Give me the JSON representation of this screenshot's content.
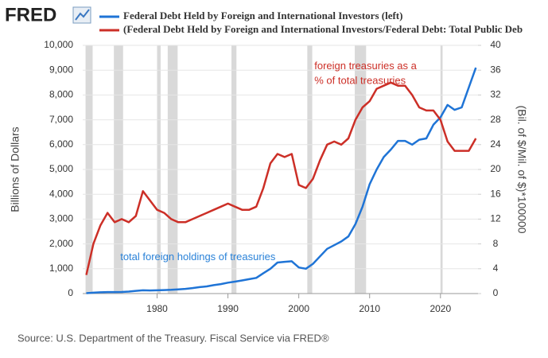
{
  "chart_data": {
    "type": "line",
    "logo": "FRED",
    "ylabel": "Billions of Dollars",
    "y2label": "(Bil. of $/Mil. of $)*100000",
    "source": "Source: U.S. Department of the Treasury. Fiscal Service via FRED®",
    "annotations": [
      {
        "text": "foreign treasuries as a",
        "x": 2002.2,
        "y": 9150,
        "color": "#cc2f27"
      },
      {
        "text": "% of total treasuries",
        "x": 2002.2,
        "y": 8550,
        "color": "#cc2f27"
      },
      {
        "text": "total foreign holdings of treasuries",
        "x": 1974.8,
        "y": 1450,
        "color": "#2a82d8"
      }
    ],
    "x": [
      1970,
      1971,
      1972,
      1973,
      1974,
      1975,
      1976,
      1977,
      1978,
      1979,
      1980,
      1981,
      1982,
      1983,
      1984,
      1985,
      1986,
      1987,
      1988,
      1989,
      1990,
      1991,
      1992,
      1993,
      1994,
      1995,
      1996,
      1997,
      1998,
      1999,
      2000,
      2001,
      2002,
      2003,
      2004,
      2005,
      2006,
      2007,
      2008,
      2009,
      2010,
      2011,
      2012,
      2013,
      2014,
      2015,
      2016,
      2017,
      2018,
      2019,
      2020,
      2021,
      2022,
      2023,
      2024,
      2025
    ],
    "series": [
      {
        "name": "Federal Debt Held by Foreign and International Investors (left)",
        "color": "#1f74d6",
        "values": [
          15,
          35,
          50,
          60,
          62,
          65,
          80,
          110,
          130,
          125,
          130,
          140,
          150,
          170,
          190,
          220,
          260,
          290,
          340,
          380,
          440,
          480,
          530,
          580,
          630,
          820,
          1000,
          1250,
          1280,
          1300,
          1050,
          1000,
          1200,
          1500,
          1800,
          1950,
          2100,
          2300,
          2800,
          3500,
          4400,
          5000,
          5500,
          5800,
          6150,
          6150,
          6000,
          6200,
          6250,
          6800,
          7100,
          7600,
          7400,
          7500,
          8300,
          9100
        ]
      },
      {
        "name": "(Federal Debt Held by Foreign and International Investors/Federal Debt: Total Public Deb",
        "color": "#cc2f27",
        "axis": "y2",
        "values": [
          3,
          8,
          11,
          13,
          11.5,
          12,
          11.5,
          12.5,
          16.5,
          15,
          13.5,
          13,
          12,
          11.5,
          11.5,
          12,
          12.5,
          13,
          13.5,
          14,
          14.5,
          14,
          13.5,
          13.5,
          14,
          17,
          21,
          22.5,
          22,
          22.5,
          17.5,
          17,
          18.5,
          21.5,
          24,
          24.5,
          24,
          25,
          28,
          30,
          31,
          33,
          33.5,
          34,
          33.5,
          33.5,
          32,
          30,
          29.5,
          29.5,
          28,
          24.5,
          23,
          23,
          23,
          25
        ]
      }
    ],
    "recessions": [
      [
        1969.9,
        1970.9
      ],
      [
        1973.9,
        1975.2
      ],
      [
        1980.0,
        1980.5
      ],
      [
        1981.5,
        1982.9
      ],
      [
        1990.5,
        1991.2
      ],
      [
        2001.2,
        2001.9
      ],
      [
        2007.9,
        2009.5
      ],
      [
        2020.0,
        2020.3
      ]
    ],
    "xlim": [
      1969.5,
      2025.3
    ],
    "xticks": [
      1980,
      1990,
      2000,
      2010,
      2020
    ],
    "ylim": [
      0,
      10000
    ],
    "yticks": [
      0,
      {
        "value": 1000,
        "label": "1,000"
      },
      {
        "value": 2000,
        "label": "2,000"
      },
      {
        "value": 3000,
        "label": "3,000"
      },
      {
        "value": 4000,
        "label": "4,000"
      },
      {
        "value": 5000,
        "label": "5,000"
      },
      {
        "value": 6000,
        "label": "6,000"
      },
      {
        "value": 7000,
        "label": "7,000"
      },
      {
        "value": 8000,
        "label": "8,000"
      },
      {
        "value": 9000,
        "label": "9,000"
      },
      {
        "value": 10000,
        "label": "10,000"
      }
    ],
    "y2lim": [
      0,
      40
    ],
    "y2ticks": [
      0,
      4,
      8,
      12,
      16,
      20,
      24,
      28,
      32,
      36,
      40
    ],
    "grid": true
  }
}
